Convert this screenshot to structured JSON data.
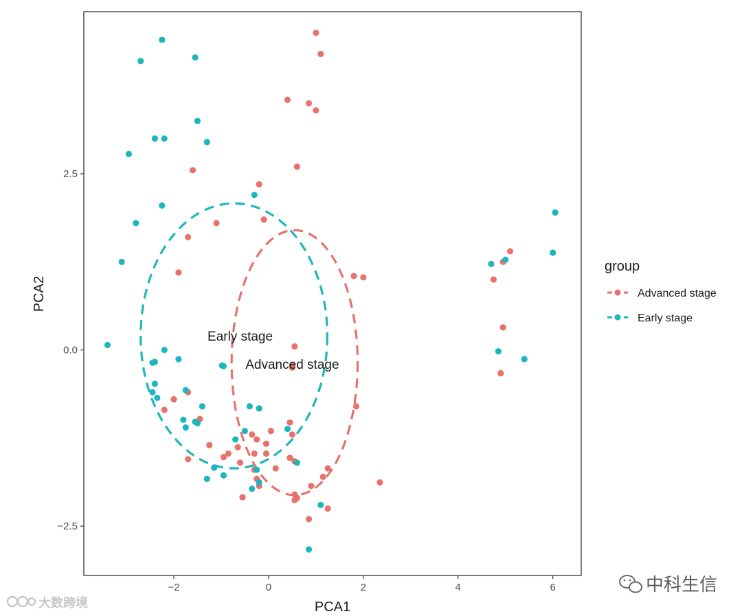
{
  "chart_data": {
    "type": "scatter",
    "xlabel": "PCA1",
    "ylabel": "PCA2",
    "xlim": [
      -3.9,
      6.6
    ],
    "ylim": [
      -3.2,
      4.8
    ],
    "xticks": [
      -2,
      0,
      2,
      4,
      6
    ],
    "xtick_labels": [
      "−2",
      "0",
      "2",
      "4",
      "6"
    ],
    "yticks": [
      -2.5,
      0,
      2.5
    ],
    "ytick_labels": [
      "−2.5",
      "0.0",
      "2.5"
    ],
    "grid": false,
    "legend": {
      "title": "group",
      "position": "right",
      "entries": [
        "Advanced stage",
        "Early stage"
      ]
    },
    "annotations": [
      {
        "text": "Early stage",
        "x": -0.6,
        "y": 0.2
      },
      {
        "text": "Advanced stage",
        "x": 0.5,
        "y": -0.2
      }
    ],
    "series": [
      {
        "name": "Advanced stage",
        "color": "#E7726B",
        "centroid": [
          0.5,
          -0.22
        ],
        "ellipse": {
          "cx": 0.55,
          "cy": -0.18,
          "rx": 1.33,
          "ry": 1.88
        },
        "points": [
          [
            1.0,
            4.5
          ],
          [
            1.1,
            4.2
          ],
          [
            0.4,
            3.55
          ],
          [
            0.85,
            3.5
          ],
          [
            1.0,
            3.4
          ],
          [
            0.6,
            2.6
          ],
          [
            -1.6,
            2.55
          ],
          [
            -0.2,
            2.35
          ],
          [
            -1.1,
            1.8
          ],
          [
            -0.1,
            1.85
          ],
          [
            -1.7,
            1.6
          ],
          [
            -1.9,
            1.1
          ],
          [
            1.8,
            1.05
          ],
          [
            2.0,
            1.03
          ],
          [
            5.1,
            1.4
          ],
          [
            4.95,
            1.25
          ],
          [
            4.75,
            1.0
          ],
          [
            4.95,
            0.32
          ],
          [
            4.9,
            -0.33
          ],
          [
            0.55,
            0.05
          ],
          [
            0.5,
            -0.25
          ],
          [
            -2.0,
            -0.7
          ],
          [
            -1.7,
            -0.6
          ],
          [
            -2.2,
            -0.85
          ],
          [
            -1.45,
            -0.98
          ],
          [
            1.85,
            -0.8
          ],
          [
            0.45,
            -1.03
          ],
          [
            0.05,
            -1.15
          ],
          [
            0.5,
            -1.2
          ],
          [
            -0.35,
            -1.2
          ],
          [
            -0.25,
            -1.27
          ],
          [
            -0.05,
            -1.33
          ],
          [
            -0.65,
            -1.38
          ],
          [
            -1.25,
            -1.35
          ],
          [
            -0.85,
            -1.47
          ],
          [
            -0.95,
            -1.52
          ],
          [
            -0.3,
            -1.47
          ],
          [
            -0.05,
            -1.47
          ],
          [
            0.45,
            -1.53
          ],
          [
            0.55,
            -1.58
          ],
          [
            -1.7,
            -1.55
          ],
          [
            -0.6,
            -1.6
          ],
          [
            -0.3,
            -1.7
          ],
          [
            0.15,
            -1.68
          ],
          [
            1.25,
            -1.68
          ],
          [
            1.15,
            -1.8
          ],
          [
            -0.25,
            -1.83
          ],
          [
            -0.2,
            -1.93
          ],
          [
            0.9,
            -1.93
          ],
          [
            2.35,
            -1.88
          ],
          [
            0.55,
            -2.05
          ],
          [
            0.6,
            -2.1
          ],
          [
            0.55,
            -2.13
          ],
          [
            -0.55,
            -2.09
          ],
          [
            1.25,
            -2.25
          ],
          [
            0.85,
            -2.4
          ]
        ]
      },
      {
        "name": "Early stage",
        "color": "#1DB6BE",
        "centroid": [
          -0.98,
          -0.22
        ],
        "ellipse": {
          "cx": -0.73,
          "cy": 0.2,
          "rx": 1.97,
          "ry": 1.88
        },
        "points": [
          [
            -2.25,
            4.4
          ],
          [
            -2.7,
            4.1
          ],
          [
            -1.55,
            4.15
          ],
          [
            -1.5,
            3.25
          ],
          [
            -2.4,
            3.0
          ],
          [
            -2.2,
            3.0
          ],
          [
            -1.3,
            2.95
          ],
          [
            -2.95,
            2.78
          ],
          [
            -0.3,
            2.2
          ],
          [
            -2.25,
            2.05
          ],
          [
            -2.8,
            1.8
          ],
          [
            -3.1,
            1.25
          ],
          [
            4.7,
            1.22
          ],
          [
            5.0,
            1.28
          ],
          [
            6.05,
            1.95
          ],
          [
            6.0,
            1.38
          ],
          [
            4.85,
            -0.02
          ],
          [
            5.4,
            -0.13
          ],
          [
            -3.4,
            0.07
          ],
          [
            -2.2,
            0.0
          ],
          [
            -2.45,
            -0.18
          ],
          [
            -2.4,
            -0.17
          ],
          [
            -1.9,
            -0.13
          ],
          [
            -0.95,
            -0.23
          ],
          [
            -2.4,
            -0.48
          ],
          [
            -2.45,
            -0.6
          ],
          [
            -2.35,
            -0.68
          ],
          [
            -1.75,
            -0.57
          ],
          [
            -1.4,
            -0.8
          ],
          [
            -0.4,
            -0.8
          ],
          [
            -0.2,
            -0.83
          ],
          [
            -1.8,
            -0.99
          ],
          [
            -1.55,
            -1.02
          ],
          [
            -1.5,
            -1.04
          ],
          [
            -1.75,
            -1.1
          ],
          [
            -0.5,
            -1.15
          ],
          [
            -0.7,
            -1.27
          ],
          [
            0.4,
            -1.12
          ],
          [
            0.6,
            -1.6
          ],
          [
            -1.15,
            -1.67
          ],
          [
            -0.95,
            -1.78
          ],
          [
            -1.3,
            -1.83
          ],
          [
            -0.25,
            -1.7
          ],
          [
            -0.2,
            -1.88
          ],
          [
            -0.35,
            -1.97
          ],
          [
            1.1,
            -2.2
          ],
          [
            0.85,
            -2.83
          ]
        ]
      }
    ]
  },
  "watermarks": {
    "left_text": "大数跨境",
    "right_text": "中科生信"
  }
}
